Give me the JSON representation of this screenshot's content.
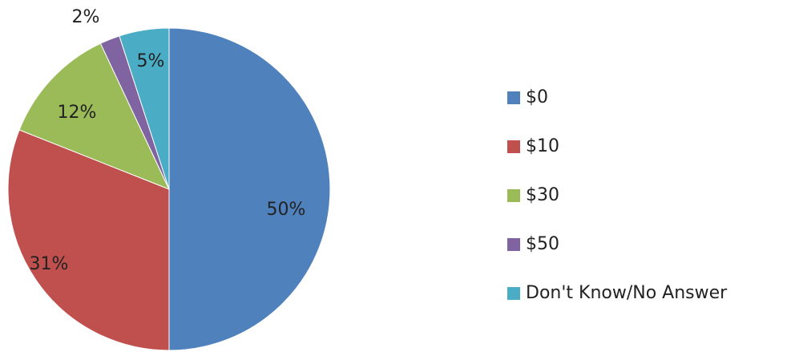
{
  "chart_data": {
    "type": "pie",
    "categories": [
      "$0",
      "$10",
      "$30",
      "$50",
      "Don't Know/No Answer"
    ],
    "values": [
      50,
      31,
      12,
      2,
      5
    ],
    "data_labels": [
      "50%",
      "31%",
      "12%",
      "2%",
      "5%"
    ],
    "colors": [
      "#4F81BD",
      "#C0504D",
      "#9BBB59",
      "#8064A2",
      "#4BACC6"
    ],
    "start_angle": "12 o'clock",
    "direction": "clockwise",
    "legend_position": "right"
  }
}
